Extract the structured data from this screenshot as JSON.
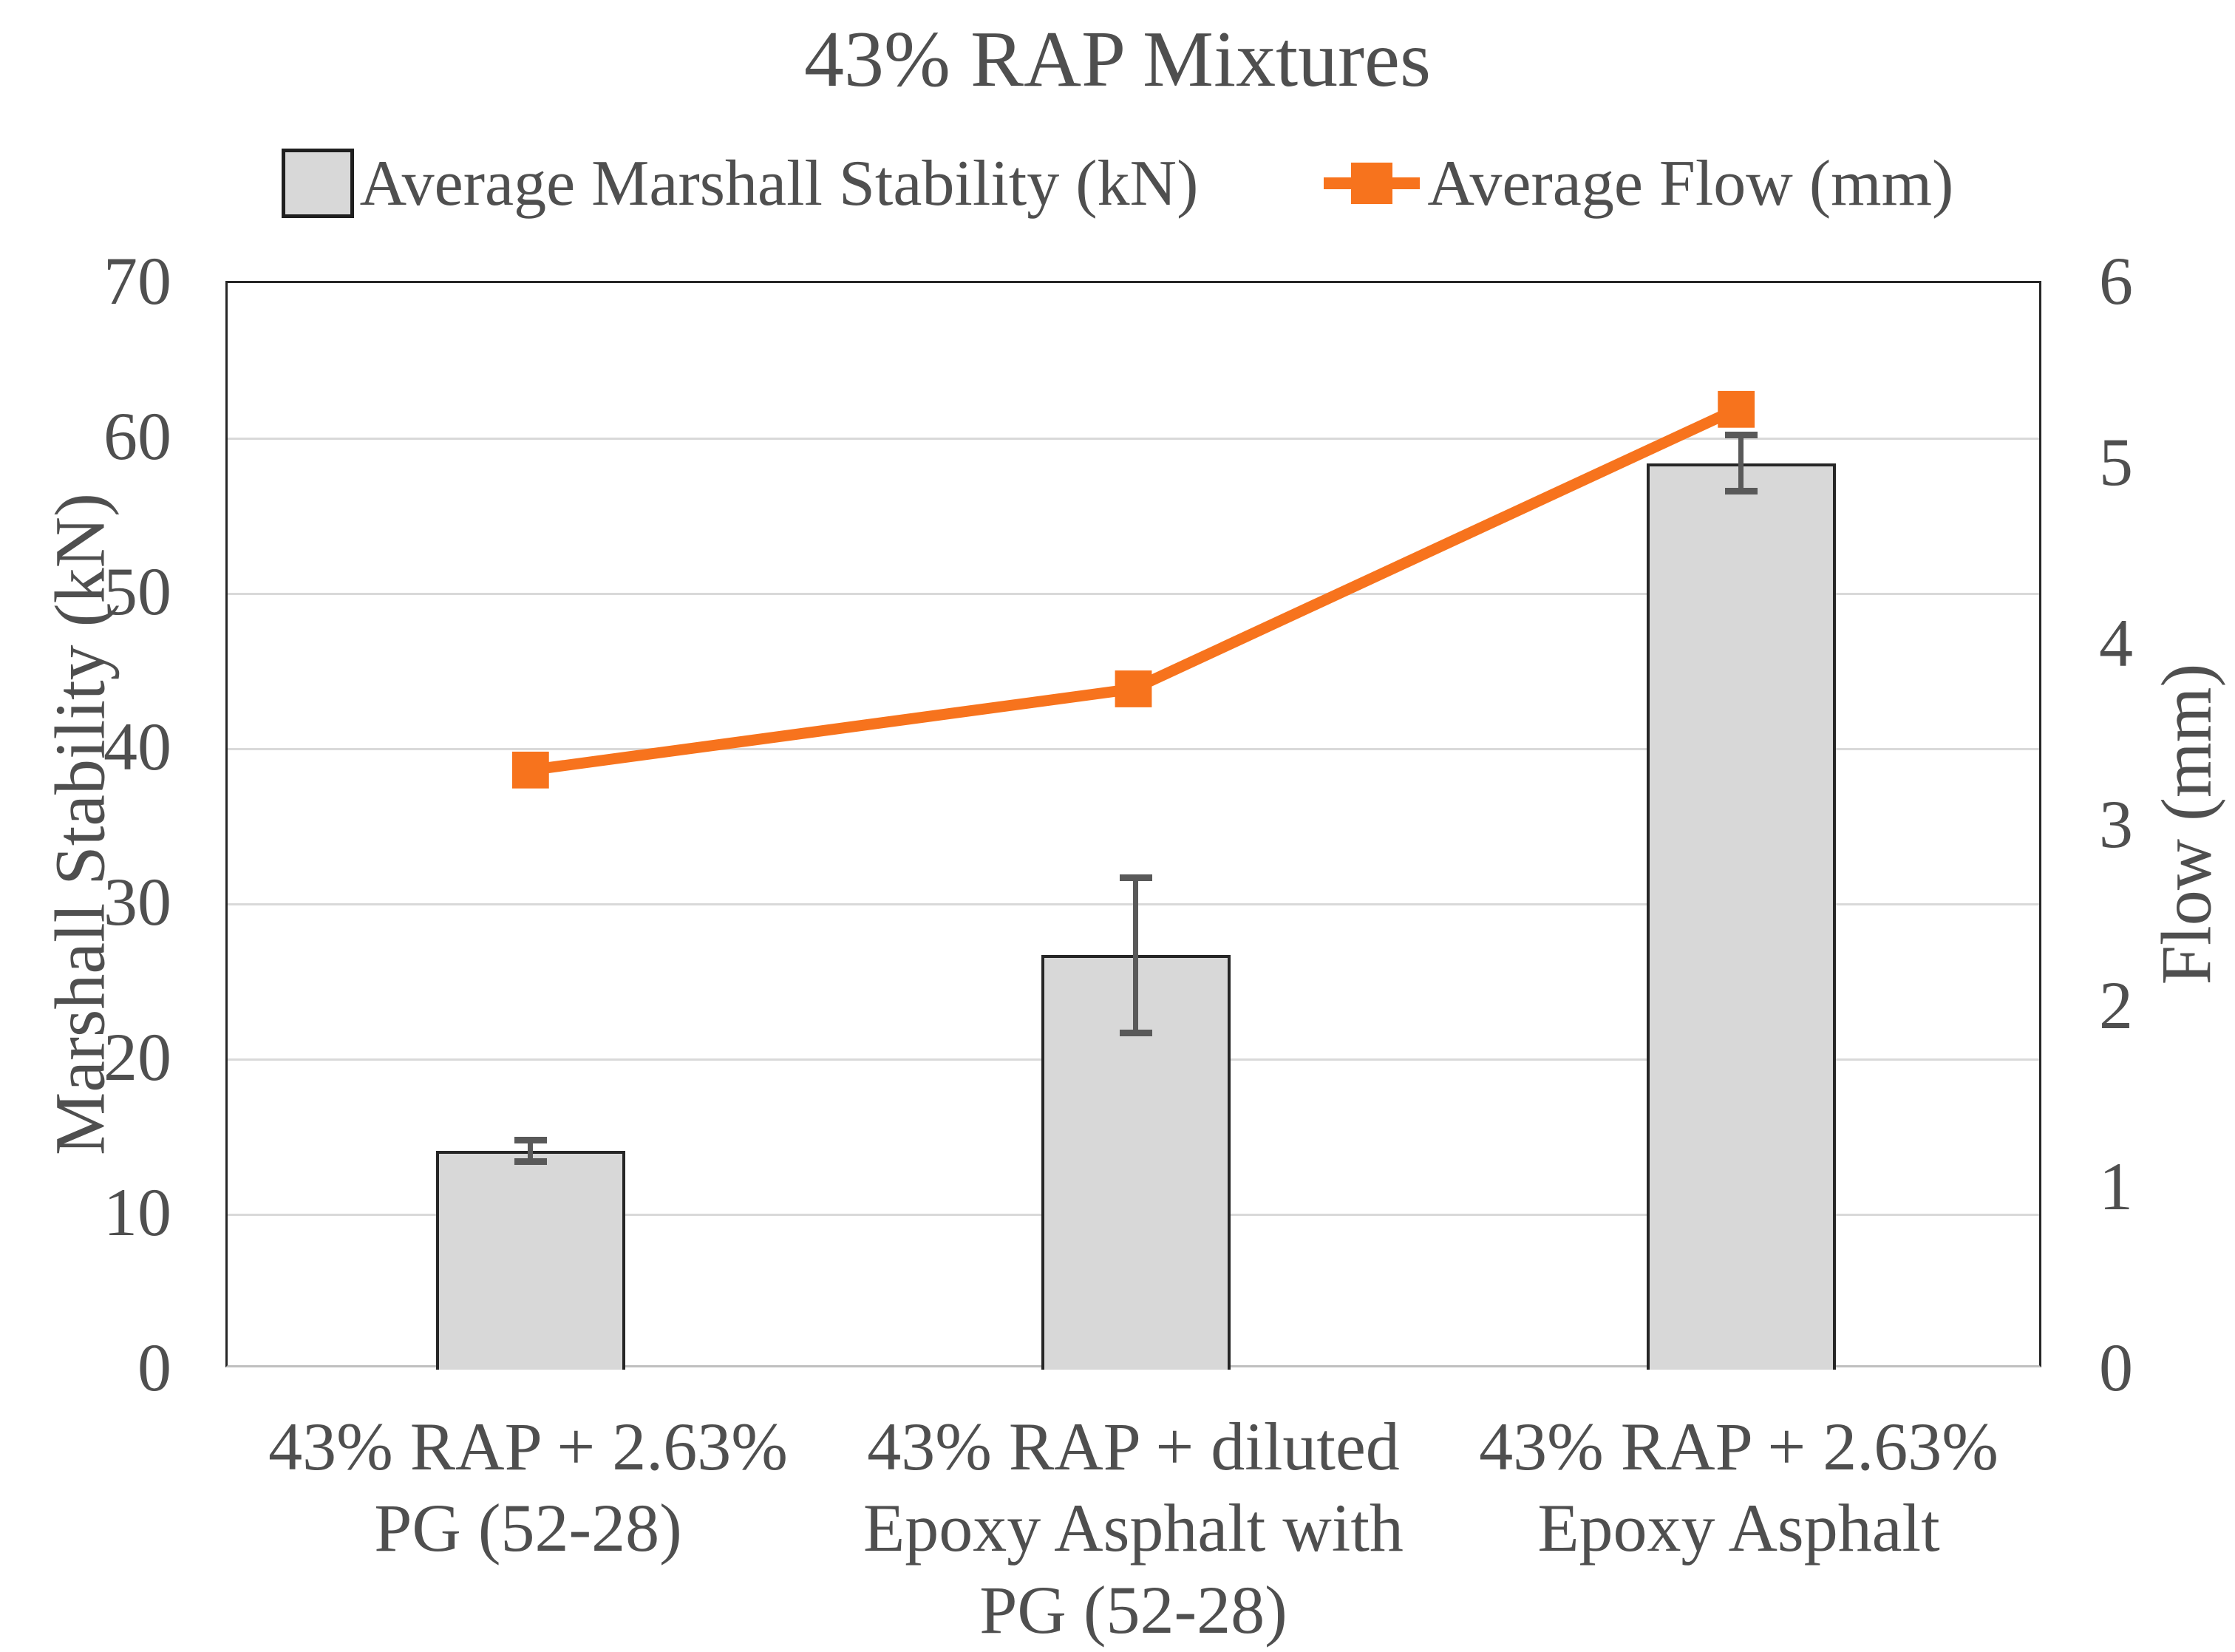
{
  "chart_data": {
    "type": "bar",
    "subtype": "combo-bar-line-dual-axis",
    "title": "43% RAP Mixtures",
    "categories": [
      "43% RAP + 2.63%\nPG (52-28)",
      "43% RAP + diluted\nEpoxy Asphalt with\nPG (52-28)",
      "43% RAP + 2.63%\nEpoxy Asphalt"
    ],
    "series": [
      {
        "name": "Average Marshall Stability (kN)",
        "type": "bar",
        "axis": "left",
        "values": [
          14.1,
          26.7,
          58.4
        ],
        "error_bars_half_width": [
          0.7,
          5.0,
          1.8
        ],
        "fill_color": "#d8d8d8",
        "border_color": "#262626"
      },
      {
        "name": "Average Flow (mm)",
        "type": "line",
        "axis": "right",
        "marker": "square",
        "values": [
          3.3,
          3.75,
          5.3
        ],
        "color": "#f7731d"
      }
    ],
    "left_axis": {
      "title": "Marshall Stability (kN)",
      "min": 0,
      "max": 70,
      "ticks": [
        0,
        10,
        20,
        30,
        40,
        50,
        60,
        70
      ]
    },
    "right_axis": {
      "title": "Flow (mm)",
      "min": 0,
      "max": 6,
      "ticks": [
        0,
        1,
        2,
        3,
        4,
        5,
        6
      ]
    },
    "grid": "horizontal",
    "legend_position": "top",
    "colors": {
      "accent_orange": "#f7731d",
      "bar_gray": "#d8d8d8",
      "gridline": "#d9d9d9",
      "text": "#4f4f4f",
      "error_bar": "#595959"
    }
  }
}
